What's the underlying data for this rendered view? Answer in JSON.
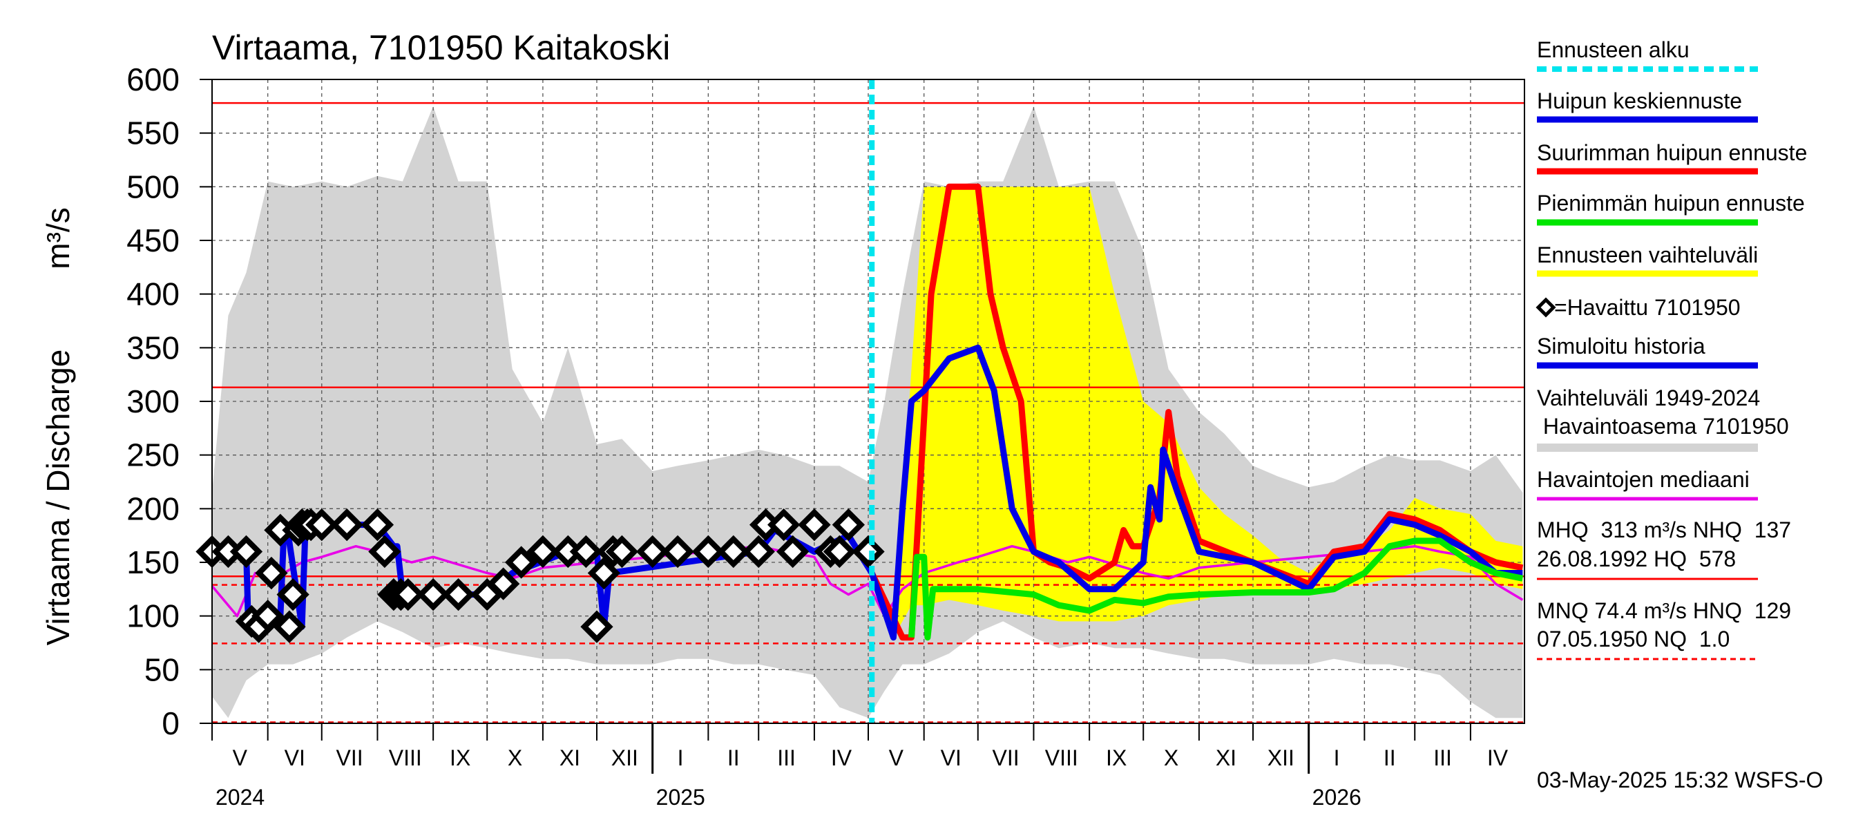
{
  "chart_data": {
    "type": "line",
    "title": "Virtaama, 7101950 Kaitakoski",
    "ylabel": "Virtaama / Discharge",
    "yunit": "m³/s",
    "ylim": [
      0,
      600
    ],
    "yticks": [
      "0",
      "50",
      "100",
      "150",
      "200",
      "250",
      "300",
      "350",
      "400",
      "450",
      "500",
      "550",
      "600"
    ],
    "grid": true,
    "legend_position": "right",
    "months": [
      "V",
      "VI",
      "VII",
      "VIII",
      "IX",
      "X",
      "XI",
      "XII",
      "I",
      "II",
      "III",
      "IV",
      "V",
      "VI",
      "VII",
      "VIII",
      "IX",
      "X",
      "XI",
      "XII",
      "I",
      "II",
      "III",
      "IV"
    ],
    "years": [
      "2024",
      "2025",
      "2026"
    ],
    "forecast_start_date": "2025-05-03",
    "legend": {
      "forecast_start": "Ennusteen alku",
      "mean_peak": "Huipun keskiennuste",
      "max_peak": "Suurimman huipun ennuste",
      "min_peak": "Pienimmän huipun ennuste",
      "forecast_range": "Ennusteen vaihteluväli",
      "observed": "=Havaittu 7101950",
      "simulated": "Simuloitu historia",
      "hist_range_1": "Vaihteluväli 1949-2024",
      "hist_range_2": " Havaintoasema 7101950",
      "median": "Havaintojen mediaani"
    },
    "stats": {
      "line1": "MHQ  313 m³/s NHQ  137",
      "line2": "26.08.1992 HQ  578",
      "line3": "MNQ 74.4 m³/s HNQ  129",
      "line4": "07.05.1950 NQ  1.0"
    },
    "reference_lines": [
      {
        "label": "HQ",
        "value": 578,
        "style": "solid"
      },
      {
        "label": "MHQ",
        "value": 313,
        "style": "solid"
      },
      {
        "label": "NHQ",
        "value": 137,
        "style": "solid"
      },
      {
        "label": "HNQ",
        "value": 129,
        "style": "dashed"
      },
      {
        "label": "MNQ",
        "value": 74.4,
        "style": "dashed"
      },
      {
        "label": "NQ",
        "value": 1.0,
        "style": "dashed"
      }
    ],
    "series": [
      {
        "key": "hist_range",
        "name": "Vaihteluväli 1949-2024",
        "color": "#d3d3d3",
        "x": [
          "2024-05-01",
          "2024-05-10",
          "2024-05-20",
          "2024-06-01",
          "2024-06-15",
          "2024-07-01",
          "2024-07-15",
          "2024-08-01",
          "2024-08-15",
          "2024-09-01",
          "2024-09-15",
          "2024-10-01",
          "2024-10-15",
          "2024-11-01",
          "2024-11-15",
          "2024-12-01",
          "2024-12-15",
          "2025-01-01",
          "2025-01-15",
          "2025-02-01",
          "2025-02-15",
          "2025-03-01",
          "2025-03-15",
          "2025-04-01",
          "2025-04-15",
          "2025-05-01",
          "2025-05-10",
          "2025-05-20",
          "2025-06-01",
          "2025-06-15",
          "2025-07-01",
          "2025-07-15",
          "2025-08-01",
          "2025-08-15",
          "2025-09-01",
          "2025-09-15",
          "2025-10-01",
          "2025-10-15",
          "2025-11-01",
          "2025-11-15",
          "2025-12-01",
          "2025-12-15",
          "2026-01-01",
          "2026-01-15",
          "2026-02-01",
          "2026-02-15",
          "2026-03-01",
          "2026-03-15",
          "2026-04-01",
          "2026-04-15",
          "2026-04-30"
        ],
        "upper": [
          215,
          380,
          420,
          505,
          500,
          505,
          500,
          510,
          505,
          575,
          505,
          505,
          330,
          280,
          350,
          260,
          265,
          235,
          240,
          245,
          250,
          255,
          250,
          240,
          240,
          225,
          300,
          400,
          505,
          500,
          505,
          505,
          575,
          500,
          505,
          505,
          440,
          330,
          290,
          270,
          240,
          230,
          220,
          225,
          240,
          250,
          245,
          245,
          235,
          250,
          215
        ],
        "lower": [
          25,
          5,
          40,
          55,
          55,
          65,
          80,
          95,
          85,
          70,
          75,
          70,
          65,
          60,
          60,
          55,
          55,
          55,
          60,
          60,
          55,
          55,
          50,
          45,
          15,
          5,
          30,
          55,
          55,
          65,
          85,
          95,
          80,
          70,
          75,
          70,
          70,
          65,
          60,
          60,
          55,
          55,
          55,
          60,
          55,
          55,
          50,
          45,
          20,
          5,
          5
        ]
      },
      {
        "key": "forecast_range",
        "name": "Ennusteen vaihteluväli",
        "color": "#ffff00",
        "x": [
          "2025-05-15",
          "2025-05-25",
          "2025-06-01",
          "2025-06-15",
          "2025-07-01",
          "2025-07-15",
          "2025-08-01",
          "2025-08-15",
          "2025-09-01",
          "2025-09-15",
          "2025-10-01",
          "2025-10-15",
          "2025-11-01",
          "2025-11-15",
          "2025-12-01",
          "2025-12-15",
          "2026-01-01",
          "2026-01-15",
          "2026-02-01",
          "2026-02-15",
          "2026-03-01",
          "2026-03-15",
          "2026-04-01",
          "2026-04-15",
          "2026-04-30"
        ],
        "upper": [
          80,
          330,
          500,
          500,
          500,
          500,
          500,
          500,
          500,
          400,
          300,
          280,
          220,
          195,
          175,
          155,
          140,
          160,
          165,
          180,
          210,
          200,
          195,
          170,
          165
        ],
        "lower": [
          80,
          110,
          110,
          115,
          110,
          105,
          100,
          95,
          95,
          95,
          100,
          110,
          115,
          120,
          120,
          120,
          125,
          125,
          130,
          135,
          140,
          145,
          140,
          130,
          125
        ]
      },
      {
        "key": "median",
        "name": "Havaintojen mediaani",
        "color": "#e800e8",
        "x": [
          "2024-05-01",
          "2024-05-15",
          "2024-05-25",
          "2024-06-05",
          "2024-06-20",
          "2024-07-01",
          "2024-07-20",
          "2024-08-01",
          "2024-08-20",
          "2024-09-01",
          "2024-10-01",
          "2024-10-15",
          "2024-11-01",
          "2024-12-01",
          "2025-01-01",
          "2025-02-01",
          "2025-03-01",
          "2025-03-15",
          "2025-04-01",
          "2025-04-10",
          "2025-04-20",
          "2025-05-01",
          "2025-05-10",
          "2025-05-20",
          "2025-06-01",
          "2025-06-20",
          "2025-07-01",
          "2025-07-20",
          "2025-08-01",
          "2025-08-20",
          "2025-09-01",
          "2025-10-01",
          "2025-10-15",
          "2025-11-01",
          "2025-12-01",
          "2026-01-01",
          "2026-02-01",
          "2026-03-01",
          "2026-03-15",
          "2026-04-01",
          "2026-04-15",
          "2026-04-30"
        ],
        "values": [
          128,
          100,
          140,
          135,
          150,
          155,
          165,
          160,
          150,
          155,
          140,
          135,
          145,
          150,
          155,
          160,
          165,
          160,
          155,
          130,
          120,
          130,
          100,
          125,
          140,
          150,
          155,
          165,
          160,
          150,
          155,
          140,
          135,
          145,
          150,
          155,
          160,
          165,
          160,
          155,
          130,
          115
        ]
      },
      {
        "key": "simulated",
        "name": "Simuloitu historia",
        "color": "#0000e6",
        "x": [
          "2024-05-01",
          "2024-05-20",
          "2024-05-21",
          "2024-06-08",
          "2024-06-10",
          "2024-06-12",
          "2024-06-20",
          "2024-06-22",
          "2024-07-01",
          "2024-08-01",
          "2024-08-10",
          "2024-08-12",
          "2024-08-15",
          "2024-10-01",
          "2024-10-15",
          "2024-11-15",
          "2024-12-01",
          "2024-12-05",
          "2024-12-08",
          "2025-03-01",
          "2025-03-10",
          "2025-04-01",
          "2025-04-20",
          "2025-05-03"
        ],
        "values": [
          160,
          160,
          100,
          100,
          180,
          180,
          90,
          185,
          185,
          185,
          165,
          165,
          120,
          120,
          140,
          160,
          160,
          90,
          140,
          160,
          180,
          160,
          175,
          140
        ]
      },
      {
        "key": "observed",
        "name": "=Havaittu 7101950",
        "color": "#000000",
        "x": [
          "2024-05-01",
          "2024-05-10",
          "2024-05-20",
          "2024-05-23",
          "2024-05-27",
          "2024-06-01",
          "2024-06-03",
          "2024-06-08",
          "2024-06-13",
          "2024-06-15",
          "2024-06-18",
          "2024-06-20",
          "2024-06-23",
          "2024-06-25",
          "2024-07-01",
          "2024-07-15",
          "2024-08-01",
          "2024-08-05",
          "2024-08-10",
          "2024-08-14",
          "2024-08-18",
          "2024-09-01",
          "2024-09-15",
          "2024-10-01",
          "2024-10-10",
          "2024-10-20",
          "2024-11-01",
          "2024-11-15",
          "2024-11-25",
          "2024-12-01",
          "2024-12-05",
          "2024-12-10",
          "2024-12-15",
          "2025-01-01",
          "2025-01-15",
          "2025-02-01",
          "2025-02-15",
          "2025-03-01",
          "2025-03-05",
          "2025-03-15",
          "2025-03-20",
          "2025-04-01",
          "2025-04-10",
          "2025-04-15",
          "2025-04-20",
          "2025-05-01"
        ],
        "values": [
          160,
          160,
          160,
          95,
          90,
          100,
          140,
          180,
          90,
          120,
          180,
          185,
          185,
          185,
          185,
          185,
          185,
          160,
          120,
          120,
          120,
          120,
          120,
          120,
          130,
          150,
          160,
          160,
          160,
          90,
          140,
          160,
          160,
          160,
          160,
          160,
          160,
          160,
          185,
          185,
          160,
          185,
          160,
          160,
          185,
          160
        ]
      },
      {
        "key": "max_peak",
        "name": "Suurimman huipun ennuste",
        "color": "#ff0000",
        "x": [
          "2025-05-03",
          "2025-05-20",
          "2025-05-25",
          "2025-06-05",
          "2025-06-15",
          "2025-06-20",
          "2025-07-01",
          "2025-07-08",
          "2025-07-15",
          "2025-07-25",
          "2025-08-01",
          "2025-08-10",
          "2025-08-20",
          "2025-09-01",
          "2025-09-15",
          "2025-09-20",
          "2025-09-25",
          "2025-10-01",
          "2025-10-10",
          "2025-10-15",
          "2025-10-20",
          "2025-11-01",
          "2025-12-01",
          "2026-01-01",
          "2026-01-15",
          "2026-02-01",
          "2026-02-15",
          "2026-03-01",
          "2026-03-15",
          "2026-04-01",
          "2026-04-15",
          "2026-04-30"
        ],
        "values": [
          140,
          80,
          80,
          400,
          500,
          500,
          500,
          400,
          350,
          300,
          160,
          150,
          145,
          135,
          150,
          180,
          165,
          165,
          210,
          290,
          230,
          170,
          150,
          130,
          160,
          165,
          195,
          190,
          180,
          160,
          150,
          145
        ]
      },
      {
        "key": "mean_peak",
        "name": "Huipun keskiennuste",
        "color": "#0000e6",
        "x": [
          "2025-05-03",
          "2025-05-15",
          "2025-05-20",
          "2025-05-25",
          "2025-06-01",
          "2025-06-15",
          "2025-07-01",
          "2025-07-10",
          "2025-07-20",
          "2025-08-01",
          "2025-08-15",
          "2025-09-01",
          "2025-09-15",
          "2025-10-01",
          "2025-10-05",
          "2025-10-10",
          "2025-10-12",
          "2025-10-20",
          "2025-11-01",
          "2025-12-01",
          "2026-01-01",
          "2026-01-15",
          "2026-02-01",
          "2026-02-15",
          "2026-03-01",
          "2026-03-15",
          "2026-04-01",
          "2026-04-15",
          "2026-04-30"
        ],
        "values": [
          140,
          80,
          200,
          300,
          310,
          340,
          350,
          310,
          200,
          160,
          150,
          125,
          125,
          150,
          220,
          190,
          255,
          215,
          160,
          150,
          125,
          155,
          160,
          190,
          185,
          175,
          160,
          140,
          140
        ]
      },
      {
        "key": "min_peak",
        "name": "Pienimmän huipun ennuste",
        "color": "#00e600",
        "x": [
          "2025-05-25",
          "2025-05-28",
          "2025-06-01",
          "2025-06-03",
          "2025-06-06",
          "2025-06-15",
          "2025-07-01",
          "2025-08-01",
          "2025-08-15",
          "2025-09-01",
          "2025-09-15",
          "2025-10-01",
          "2025-10-15",
          "2025-11-01",
          "2025-12-01",
          "2026-01-01",
          "2026-01-15",
          "2026-02-01",
          "2026-02-15",
          "2026-03-01",
          "2026-03-15",
          "2026-04-01",
          "2026-04-15",
          "2026-04-30"
        ],
        "values": [
          80,
          155,
          155,
          80,
          125,
          125,
          125,
          120,
          110,
          105,
          115,
          112,
          118,
          120,
          122,
          122,
          125,
          140,
          165,
          170,
          170,
          150,
          140,
          135
        ]
      }
    ]
  }
}
